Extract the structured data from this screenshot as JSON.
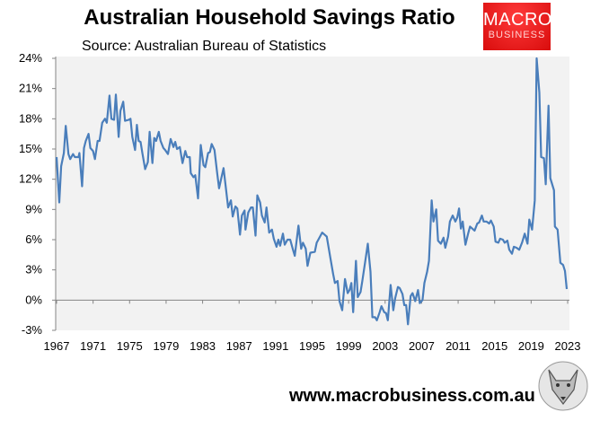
{
  "header": {
    "title": "Australian Household Savings Ratio",
    "source": "Source: Australian Bureau of Statistics"
  },
  "logo": {
    "line1": "MACRO",
    "line2": "BUSINESS",
    "color": "#e51c1c"
  },
  "footer": {
    "url": "www.macrobusiness.com.au"
  },
  "chart_data": {
    "type": "line",
    "title": "Australian Household Savings Ratio",
    "xlabel": "",
    "ylabel": "",
    "ylim": [
      -3,
      24
    ],
    "xlim": [
      1967,
      2023
    ],
    "yticks": [
      "-3%",
      "0%",
      "3%",
      "6%",
      "9%",
      "12%",
      "15%",
      "18%",
      "21%",
      "24%"
    ],
    "xticks": [
      "1967",
      "1971",
      "1975",
      "1979",
      "1983",
      "1987",
      "1991",
      "1995",
      "1999",
      "2003",
      "2007",
      "2011",
      "2015",
      "2019",
      "2023"
    ],
    "grid": false,
    "line_color": "#4a7ebb",
    "background": "#f2f2f2",
    "points": [
      [
        1967.0,
        14.2
      ],
      [
        1967.3,
        9.7
      ],
      [
        1967.5,
        13.3
      ],
      [
        1967.8,
        14.6
      ],
      [
        1968.0,
        17.3
      ],
      [
        1968.3,
        14.5
      ],
      [
        1968.5,
        14.0
      ],
      [
        1968.8,
        14.5
      ],
      [
        1969.0,
        14.2
      ],
      [
        1969.4,
        14.2
      ],
      [
        1969.5,
        14.6
      ],
      [
        1969.8,
        11.3
      ],
      [
        1970.0,
        15.1
      ],
      [
        1970.2,
        15.8
      ],
      [
        1970.5,
        16.5
      ],
      [
        1970.7,
        15.1
      ],
      [
        1971.0,
        14.8
      ],
      [
        1971.2,
        14.0
      ],
      [
        1971.5,
        15.8
      ],
      [
        1971.7,
        15.8
      ],
      [
        1972.0,
        17.6
      ],
      [
        1972.3,
        18.0
      ],
      [
        1972.5,
        17.6
      ],
      [
        1972.8,
        20.3
      ],
      [
        1973.0,
        18.0
      ],
      [
        1973.3,
        17.9
      ],
      [
        1973.5,
        20.4
      ],
      [
        1973.8,
        16.2
      ],
      [
        1974.0,
        18.8
      ],
      [
        1974.3,
        19.7
      ],
      [
        1974.5,
        17.8
      ],
      [
        1974.9,
        17.9
      ],
      [
        1975.1,
        18.0
      ],
      [
        1975.3,
        16.2
      ],
      [
        1975.6,
        14.9
      ],
      [
        1975.8,
        17.4
      ],
      [
        1976.0,
        15.8
      ],
      [
        1976.2,
        15.7
      ],
      [
        1976.4,
        14.6
      ],
      [
        1976.7,
        13.0
      ],
      [
        1977.0,
        13.7
      ],
      [
        1977.2,
        16.7
      ],
      [
        1977.5,
        13.6
      ],
      [
        1977.7,
        16.1
      ],
      [
        1977.9,
        15.8
      ],
      [
        1978.2,
        16.7
      ],
      [
        1978.4,
        15.8
      ],
      [
        1978.7,
        15.1
      ],
      [
        1978.9,
        14.9
      ],
      [
        1979.2,
        14.5
      ],
      [
        1979.5,
        16.0
      ],
      [
        1979.8,
        15.2
      ],
      [
        1980.0,
        15.7
      ],
      [
        1980.2,
        15.0
      ],
      [
        1980.5,
        15.2
      ],
      [
        1980.8,
        13.6
      ],
      [
        1981.1,
        14.8
      ],
      [
        1981.3,
        14.2
      ],
      [
        1981.6,
        14.2
      ],
      [
        1981.7,
        12.6
      ],
      [
        1982.0,
        12.2
      ],
      [
        1982.2,
        12.4
      ],
      [
        1982.5,
        10.1
      ],
      [
        1982.8,
        15.4
      ],
      [
        1983.1,
        13.4
      ],
      [
        1983.3,
        13.2
      ],
      [
        1983.6,
        14.6
      ],
      [
        1983.8,
        14.7
      ],
      [
        1984.0,
        15.5
      ],
      [
        1984.3,
        14.9
      ],
      [
        1984.6,
        12.6
      ],
      [
        1984.8,
        11.1
      ],
      [
        1985.3,
        13.1
      ],
      [
        1985.8,
        9.2
      ],
      [
        1986.1,
        9.9
      ],
      [
        1986.3,
        8.3
      ],
      [
        1986.6,
        9.3
      ],
      [
        1986.8,
        9.1
      ],
      [
        1987.1,
        6.5
      ],
      [
        1987.3,
        8.4
      ],
      [
        1987.6,
        8.9
      ],
      [
        1987.7,
        7.0
      ],
      [
        1988.0,
        8.7
      ],
      [
        1988.3,
        9.2
      ],
      [
        1988.5,
        9.2
      ],
      [
        1988.8,
        6.4
      ],
      [
        1989.0,
        10.4
      ],
      [
        1989.3,
        9.7
      ],
      [
        1989.5,
        8.4
      ],
      [
        1989.8,
        7.7
      ],
      [
        1990.0,
        9.2
      ],
      [
        1990.3,
        6.7
      ],
      [
        1990.6,
        7.0
      ],
      [
        1990.8,
        6.1
      ],
      [
        1991.1,
        5.3
      ],
      [
        1991.3,
        6.0
      ],
      [
        1991.5,
        5.4
      ],
      [
        1991.8,
        6.6
      ],
      [
        1992.0,
        5.5
      ],
      [
        1992.3,
        6.0
      ],
      [
        1992.6,
        6.0
      ],
      [
        1992.9,
        5.0
      ],
      [
        1993.1,
        4.4
      ],
      [
        1993.5,
        7.4
      ],
      [
        1993.8,
        5.1
      ],
      [
        1994.0,
        5.7
      ],
      [
        1994.3,
        5.1
      ],
      [
        1994.5,
        3.4
      ],
      [
        1994.8,
        4.7
      ],
      [
        1995.3,
        4.8
      ],
      [
        1995.5,
        5.7
      ],
      [
        1996.1,
        6.7
      ],
      [
        1996.6,
        6.3
      ],
      [
        1997.0,
        4.2
      ],
      [
        1997.3,
        2.6
      ],
      [
        1997.5,
        1.7
      ],
      [
        1997.8,
        1.9
      ],
      [
        1998.0,
        -0.1
      ],
      [
        1998.3,
        -1.0
      ],
      [
        1998.6,
        2.1
      ],
      [
        1998.9,
        0.7
      ],
      [
        1999.1,
        1.0
      ],
      [
        1999.3,
        1.7
      ],
      [
        1999.5,
        -1.2
      ],
      [
        1999.8,
        3.9
      ],
      [
        2000.0,
        0.3
      ],
      [
        2000.3,
        0.8
      ],
      [
        2000.5,
        1.9
      ],
      [
        2000.8,
        3.7
      ],
      [
        2001.1,
        5.6
      ],
      [
        2001.4,
        2.8
      ],
      [
        2001.6,
        -1.7
      ],
      [
        2001.9,
        -1.7
      ],
      [
        2002.1,
        -2.0
      ],
      [
        2002.4,
        -1.2
      ],
      [
        2002.6,
        -0.6
      ],
      [
        2002.9,
        -1.2
      ],
      [
        2003.1,
        -1.3
      ],
      [
        2003.3,
        -2.0
      ],
      [
        2003.6,
        1.5
      ],
      [
        2003.9,
        -1.0
      ],
      [
        2004.1,
        0.2
      ],
      [
        2004.4,
        1.3
      ],
      [
        2004.6,
        1.2
      ],
      [
        2004.9,
        0.6
      ],
      [
        2005.1,
        -0.5
      ],
      [
        2005.3,
        -0.5
      ],
      [
        2005.5,
        -2.4
      ],
      [
        2005.8,
        0.4
      ],
      [
        2006.0,
        0.7
      ],
      [
        2006.3,
        -0.1
      ],
      [
        2006.6,
        1.0
      ],
      [
        2006.8,
        -0.3
      ],
      [
        2007.1,
        0.0
      ],
      [
        2007.3,
        1.7
      ],
      [
        2007.6,
        2.8
      ],
      [
        2007.8,
        3.9
      ],
      [
        2008.1,
        9.9
      ],
      [
        2008.3,
        7.8
      ],
      [
        2008.6,
        9.0
      ],
      [
        2008.8,
        5.9
      ],
      [
        2009.1,
        5.6
      ],
      [
        2009.4,
        6.2
      ],
      [
        2009.6,
        5.2
      ],
      [
        2009.9,
        6.3
      ],
      [
        2010.1,
        7.8
      ],
      [
        2010.4,
        8.4
      ],
      [
        2010.7,
        7.8
      ],
      [
        2010.9,
        8.2
      ],
      [
        2011.1,
        9.1
      ],
      [
        2011.3,
        7.1
      ],
      [
        2011.5,
        7.8
      ],
      [
        2011.8,
        5.5
      ],
      [
        2012.1,
        6.6
      ],
      [
        2012.3,
        7.3
      ],
      [
        2012.8,
        6.9
      ],
      [
        2013.1,
        7.6
      ],
      [
        2013.3,
        7.7
      ],
      [
        2013.6,
        8.4
      ],
      [
        2013.8,
        7.8
      ],
      [
        2014.1,
        7.8
      ],
      [
        2014.4,
        7.6
      ],
      [
        2014.6,
        7.9
      ],
      [
        2014.9,
        7.3
      ],
      [
        2015.1,
        5.8
      ],
      [
        2015.4,
        5.7
      ],
      [
        2015.6,
        6.1
      ],
      [
        2015.9,
        6.0
      ],
      [
        2016.1,
        5.7
      ],
      [
        2016.4,
        5.9
      ],
      [
        2016.6,
        5.0
      ],
      [
        2016.9,
        4.6
      ],
      [
        2017.1,
        5.3
      ],
      [
        2017.4,
        5.2
      ],
      [
        2017.7,
        5.0
      ],
      [
        2018.0,
        5.7
      ],
      [
        2018.3,
        6.6
      ],
      [
        2018.6,
        5.6
      ],
      [
        2018.8,
        8.0
      ],
      [
        2019.1,
        7.0
      ],
      [
        2019.4,
        9.9
      ],
      [
        2019.6,
        24.0
      ],
      [
        2019.9,
        20.6
      ],
      [
        2020.1,
        14.2
      ],
      [
        2020.4,
        14.1
      ],
      [
        2020.6,
        11.5
      ],
      [
        2020.9,
        19.3
      ],
      [
        2021.1,
        12.1
      ],
      [
        2021.5,
        10.9
      ],
      [
        2021.6,
        7.3
      ],
      [
        2021.9,
        7.0
      ],
      [
        2022.2,
        3.7
      ],
      [
        2022.5,
        3.5
      ],
      [
        2022.7,
        2.9
      ],
      [
        2022.9,
        1.1
      ]
    ]
  }
}
